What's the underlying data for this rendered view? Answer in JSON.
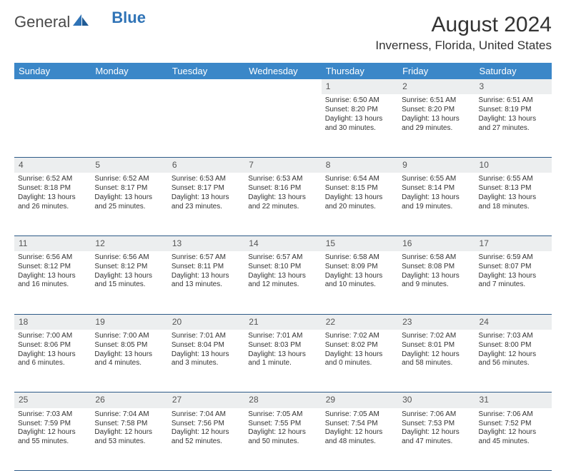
{
  "brand": {
    "word1": "General",
    "word2": "Blue"
  },
  "title": "August 2024",
  "location": "Inverness, Florida, United States",
  "colors": {
    "header_bg": "#3b87c8",
    "header_text": "#ffffff",
    "daynum_bg": "#eceeef",
    "cell_border": "#2d5a87",
    "logo_blue": "#2f73b6"
  },
  "days_of_week": [
    "Sunday",
    "Monday",
    "Tuesday",
    "Wednesday",
    "Thursday",
    "Friday",
    "Saturday"
  ],
  "weeks": [
    {
      "nums": [
        "",
        "",
        "",
        "",
        "1",
        "2",
        "3"
      ],
      "cells": [
        null,
        null,
        null,
        null,
        {
          "sunrise": "6:50 AM",
          "sunset": "8:20 PM",
          "daylight": "13 hours and 30 minutes."
        },
        {
          "sunrise": "6:51 AM",
          "sunset": "8:20 PM",
          "daylight": "13 hours and 29 minutes."
        },
        {
          "sunrise": "6:51 AM",
          "sunset": "8:19 PM",
          "daylight": "13 hours and 27 minutes."
        }
      ]
    },
    {
      "nums": [
        "4",
        "5",
        "6",
        "7",
        "8",
        "9",
        "10"
      ],
      "cells": [
        {
          "sunrise": "6:52 AM",
          "sunset": "8:18 PM",
          "daylight": "13 hours and 26 minutes."
        },
        {
          "sunrise": "6:52 AM",
          "sunset": "8:17 PM",
          "daylight": "13 hours and 25 minutes."
        },
        {
          "sunrise": "6:53 AM",
          "sunset": "8:17 PM",
          "daylight": "13 hours and 23 minutes."
        },
        {
          "sunrise": "6:53 AM",
          "sunset": "8:16 PM",
          "daylight": "13 hours and 22 minutes."
        },
        {
          "sunrise": "6:54 AM",
          "sunset": "8:15 PM",
          "daylight": "13 hours and 20 minutes."
        },
        {
          "sunrise": "6:55 AM",
          "sunset": "8:14 PM",
          "daylight": "13 hours and 19 minutes."
        },
        {
          "sunrise": "6:55 AM",
          "sunset": "8:13 PM",
          "daylight": "13 hours and 18 minutes."
        }
      ]
    },
    {
      "nums": [
        "11",
        "12",
        "13",
        "14",
        "15",
        "16",
        "17"
      ],
      "cells": [
        {
          "sunrise": "6:56 AM",
          "sunset": "8:12 PM",
          "daylight": "13 hours and 16 minutes."
        },
        {
          "sunrise": "6:56 AM",
          "sunset": "8:12 PM",
          "daylight": "13 hours and 15 minutes."
        },
        {
          "sunrise": "6:57 AM",
          "sunset": "8:11 PM",
          "daylight": "13 hours and 13 minutes."
        },
        {
          "sunrise": "6:57 AM",
          "sunset": "8:10 PM",
          "daylight": "13 hours and 12 minutes."
        },
        {
          "sunrise": "6:58 AM",
          "sunset": "8:09 PM",
          "daylight": "13 hours and 10 minutes."
        },
        {
          "sunrise": "6:58 AM",
          "sunset": "8:08 PM",
          "daylight": "13 hours and 9 minutes."
        },
        {
          "sunrise": "6:59 AM",
          "sunset": "8:07 PM",
          "daylight": "13 hours and 7 minutes."
        }
      ]
    },
    {
      "nums": [
        "18",
        "19",
        "20",
        "21",
        "22",
        "23",
        "24"
      ],
      "cells": [
        {
          "sunrise": "7:00 AM",
          "sunset": "8:06 PM",
          "daylight": "13 hours and 6 minutes."
        },
        {
          "sunrise": "7:00 AM",
          "sunset": "8:05 PM",
          "daylight": "13 hours and 4 minutes."
        },
        {
          "sunrise": "7:01 AM",
          "sunset": "8:04 PM",
          "daylight": "13 hours and 3 minutes."
        },
        {
          "sunrise": "7:01 AM",
          "sunset": "8:03 PM",
          "daylight": "13 hours and 1 minute."
        },
        {
          "sunrise": "7:02 AM",
          "sunset": "8:02 PM",
          "daylight": "13 hours and 0 minutes."
        },
        {
          "sunrise": "7:02 AM",
          "sunset": "8:01 PM",
          "daylight": "12 hours and 58 minutes."
        },
        {
          "sunrise": "7:03 AM",
          "sunset": "8:00 PM",
          "daylight": "12 hours and 56 minutes."
        }
      ]
    },
    {
      "nums": [
        "25",
        "26",
        "27",
        "28",
        "29",
        "30",
        "31"
      ],
      "cells": [
        {
          "sunrise": "7:03 AM",
          "sunset": "7:59 PM",
          "daylight": "12 hours and 55 minutes."
        },
        {
          "sunrise": "7:04 AM",
          "sunset": "7:58 PM",
          "daylight": "12 hours and 53 minutes."
        },
        {
          "sunrise": "7:04 AM",
          "sunset": "7:56 PM",
          "daylight": "12 hours and 52 minutes."
        },
        {
          "sunrise": "7:05 AM",
          "sunset": "7:55 PM",
          "daylight": "12 hours and 50 minutes."
        },
        {
          "sunrise": "7:05 AM",
          "sunset": "7:54 PM",
          "daylight": "12 hours and 48 minutes."
        },
        {
          "sunrise": "7:06 AM",
          "sunset": "7:53 PM",
          "daylight": "12 hours and 47 minutes."
        },
        {
          "sunrise": "7:06 AM",
          "sunset": "7:52 PM",
          "daylight": "12 hours and 45 minutes."
        }
      ]
    }
  ],
  "labels": {
    "sunrise": "Sunrise: ",
    "sunset": "Sunset: ",
    "daylight": "Daylight: "
  }
}
